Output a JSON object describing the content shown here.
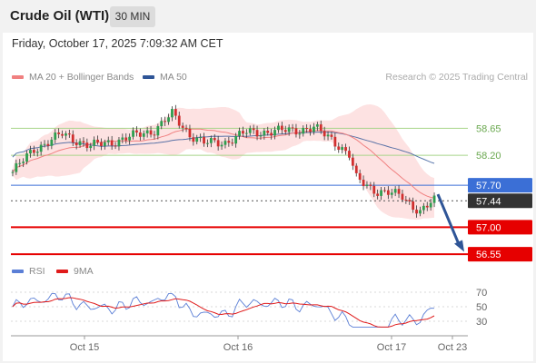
{
  "header": {
    "title": "Crude Oil (WTI)",
    "timeframe": "30 MIN"
  },
  "datetime": "Friday, October 17, 2025 7:09:32 AM CET",
  "legend": {
    "ma20": "MA 20 + Bollinger Bands",
    "ma50": "MA 50",
    "ma20_color": "#f08080",
    "ma50_color": "#2f5597"
  },
  "credit": "Research © 2025 Trading Central",
  "rsi_legend": {
    "rsi": "RSI",
    "ma9": "9MA",
    "rsi_color": "#5b7fd6",
    "ma9_color": "#e01b1b"
  },
  "chart_data": [
    {
      "type": "candlestick",
      "x_ticks": [
        "Oct 15",
        "Oct 16",
        "Oct 17",
        "Oct 23"
      ],
      "ylim": [
        56.4,
        59.2
      ],
      "levels": [
        {
          "label": "58.65",
          "value": 58.65,
          "kind": "resistance",
          "color": "#a8d48a"
        },
        {
          "label": "58.20",
          "value": 58.2,
          "kind": "resistance",
          "color": "#a8d48a"
        },
        {
          "label": "57.70",
          "value": 57.7,
          "kind": "pivot",
          "color": "#3b6fd6"
        },
        {
          "label": "57.44",
          "value": 57.44,
          "kind": "last",
          "color": "#333333"
        },
        {
          "label": "57.00",
          "value": 57.0,
          "kind": "support",
          "color": "#e60000"
        },
        {
          "label": "56.55",
          "value": 56.55,
          "kind": "support",
          "color": "#e60000"
        }
      ],
      "series": [
        {
          "name": "MA 20 + Bollinger Bands",
          "color": "#f08080"
        },
        {
          "name": "MA 50",
          "color": "#2f5597"
        }
      ],
      "forecast_arrow": {
        "from": 57.55,
        "to": 56.62,
        "color": "#2f5597"
      }
    },
    {
      "type": "line",
      "x_ticks": [
        "Oct 15",
        "Oct 16",
        "Oct 17",
        "Oct 23"
      ],
      "y_ticks": [
        "70",
        "50",
        "30"
      ],
      "ylim": [
        15,
        85
      ],
      "series": [
        {
          "name": "RSI",
          "color": "#5b7fd6"
        },
        {
          "name": "9MA",
          "color": "#e01b1b"
        }
      ]
    }
  ]
}
